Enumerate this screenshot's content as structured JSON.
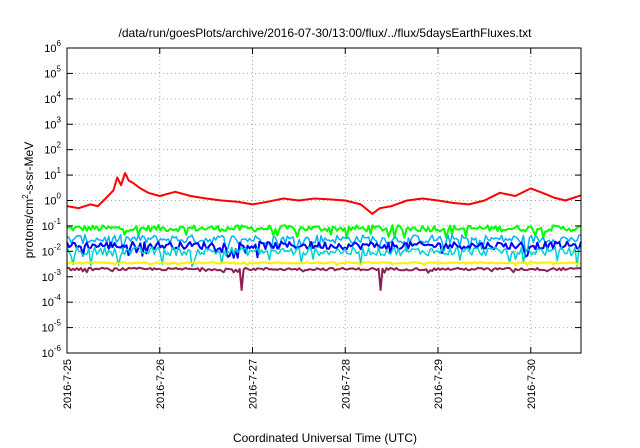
{
  "chart_data": {
    "type": "line",
    "title": "/data/run/goesPlots/archive/2016-07-30/13:00/flux/../flux/5daysEarthFluxes.txt",
    "xlabel": "Coordinated Universal Time (UTC)",
    "ylabel": {
      "base": "protons/cm",
      "sup": "2",
      "rest": "-s-sr-MeV"
    },
    "x_ticks": [
      "2016-7-25",
      "2016-7-26",
      "2016-7-27",
      "2016-7-28",
      "2016-7-29",
      "2016-7-30"
    ],
    "xlim": [
      "2016-07-25T00:00",
      "2016-07-30T13:00"
    ],
    "y_scale": "log",
    "ylim": [
      1e-06,
      1000000.0
    ],
    "y_ticks": [
      {
        "base": "10",
        "exp": "-6",
        "value": 1e-06
      },
      {
        "base": "10",
        "exp": "-5",
        "value": 1e-05
      },
      {
        "base": "10",
        "exp": "-4",
        "value": 0.0001
      },
      {
        "base": "10",
        "exp": "-3",
        "value": 0.001
      },
      {
        "base": "10",
        "exp": "-2",
        "value": 0.01
      },
      {
        "base": "10",
        "exp": "-1",
        "value": 0.1
      },
      {
        "base": "10",
        "exp": "0",
        "value": 1
      },
      {
        "base": "10",
        "exp": "1",
        "value": 10
      },
      {
        "base": "10",
        "exp": "2",
        "value": 100
      },
      {
        "base": "10",
        "exp": "3",
        "value": 1000
      },
      {
        "base": "10",
        "exp": "4",
        "value": 10000
      },
      {
        "base": "10",
        "exp": "5",
        "value": 100000
      },
      {
        "base": "10",
        "exp": "6",
        "value": 1000000
      }
    ],
    "grid": true,
    "series": [
      {
        "color": "#ff0000",
        "width": 2,
        "points": [
          [
            "2016-07-25T00:00",
            0.6
          ],
          [
            "2016-07-25T03:00",
            0.5
          ],
          [
            "2016-07-25T06:00",
            0.7
          ],
          [
            "2016-07-25T08:00",
            0.6
          ],
          [
            "2016-07-25T10:00",
            1.2
          ],
          [
            "2016-07-25T12:00",
            2.5
          ],
          [
            "2016-07-25T13:00",
            8
          ],
          [
            "2016-07-25T14:00",
            4
          ],
          [
            "2016-07-25T15:00",
            12
          ],
          [
            "2016-07-25T16:00",
            6
          ],
          [
            "2016-07-25T17:00",
            5
          ],
          [
            "2016-07-25T19:00",
            3
          ],
          [
            "2016-07-25T21:00",
            2
          ],
          [
            "2016-07-26T00:00",
            1.5
          ],
          [
            "2016-07-26T04:00",
            2.2
          ],
          [
            "2016-07-26T08:00",
            1.5
          ],
          [
            "2016-07-26T12:00",
            1.2
          ],
          [
            "2016-07-26T16:00",
            1.0
          ],
          [
            "2016-07-26T20:00",
            0.9
          ],
          [
            "2016-07-27T00:00",
            0.7
          ],
          [
            "2016-07-27T04:00",
            0.9
          ],
          [
            "2016-07-27T08:00",
            1.2
          ],
          [
            "2016-07-27T12:00",
            1.0
          ],
          [
            "2016-07-27T16:00",
            1.2
          ],
          [
            "2016-07-27T20:00",
            1.1
          ],
          [
            "2016-07-28T00:00",
            1.0
          ],
          [
            "2016-07-28T04:00",
            0.7
          ],
          [
            "2016-07-28T07:00",
            0.3
          ],
          [
            "2016-07-28T09:00",
            0.5
          ],
          [
            "2016-07-28T12:00",
            0.6
          ],
          [
            "2016-07-28T16:00",
            1.0
          ],
          [
            "2016-07-28T20:00",
            1.2
          ],
          [
            "2016-07-29T00:00",
            1.0
          ],
          [
            "2016-07-29T04:00",
            0.8
          ],
          [
            "2016-07-29T08:00",
            0.7
          ],
          [
            "2016-07-29T12:00",
            1.0
          ],
          [
            "2016-07-29T16:00",
            2.0
          ],
          [
            "2016-07-29T20:00",
            1.5
          ],
          [
            "2016-07-30T00:00",
            3.0
          ],
          [
            "2016-07-30T03:00",
            2.0
          ],
          [
            "2016-07-30T06:00",
            1.3
          ],
          [
            "2016-07-30T09:00",
            1.0
          ],
          [
            "2016-07-30T13:00",
            1.6
          ]
        ]
      },
      {
        "color": "#00ff00",
        "width": 2,
        "base": 0.08,
        "noise": 0.25,
        "dips": 0.4
      },
      {
        "color": "#00b0ff",
        "width": 1.5,
        "base": 0.03,
        "noise": 0.35,
        "dips": 0.5
      },
      {
        "color": "#0000ff",
        "width": 2,
        "base": 0.017,
        "noise": 0.3,
        "dips": 0.5
      },
      {
        "color": "#00d0d0",
        "width": 1.5,
        "base": 0.01,
        "noise": 0.35,
        "dips": 0.6
      },
      {
        "color": "#ffee00",
        "width": 2,
        "base": 0.0035,
        "noise": 0.06,
        "dips": 0.1
      },
      {
        "color": "#8b2252",
        "width": 2,
        "base": 0.002,
        "noise": 0.1,
        "dips": 0.15,
        "spikes": [
          [
            "2016-07-26T21:00",
            0.0003
          ],
          [
            "2016-07-28T09:00",
            0.0003
          ]
        ]
      }
    ]
  }
}
